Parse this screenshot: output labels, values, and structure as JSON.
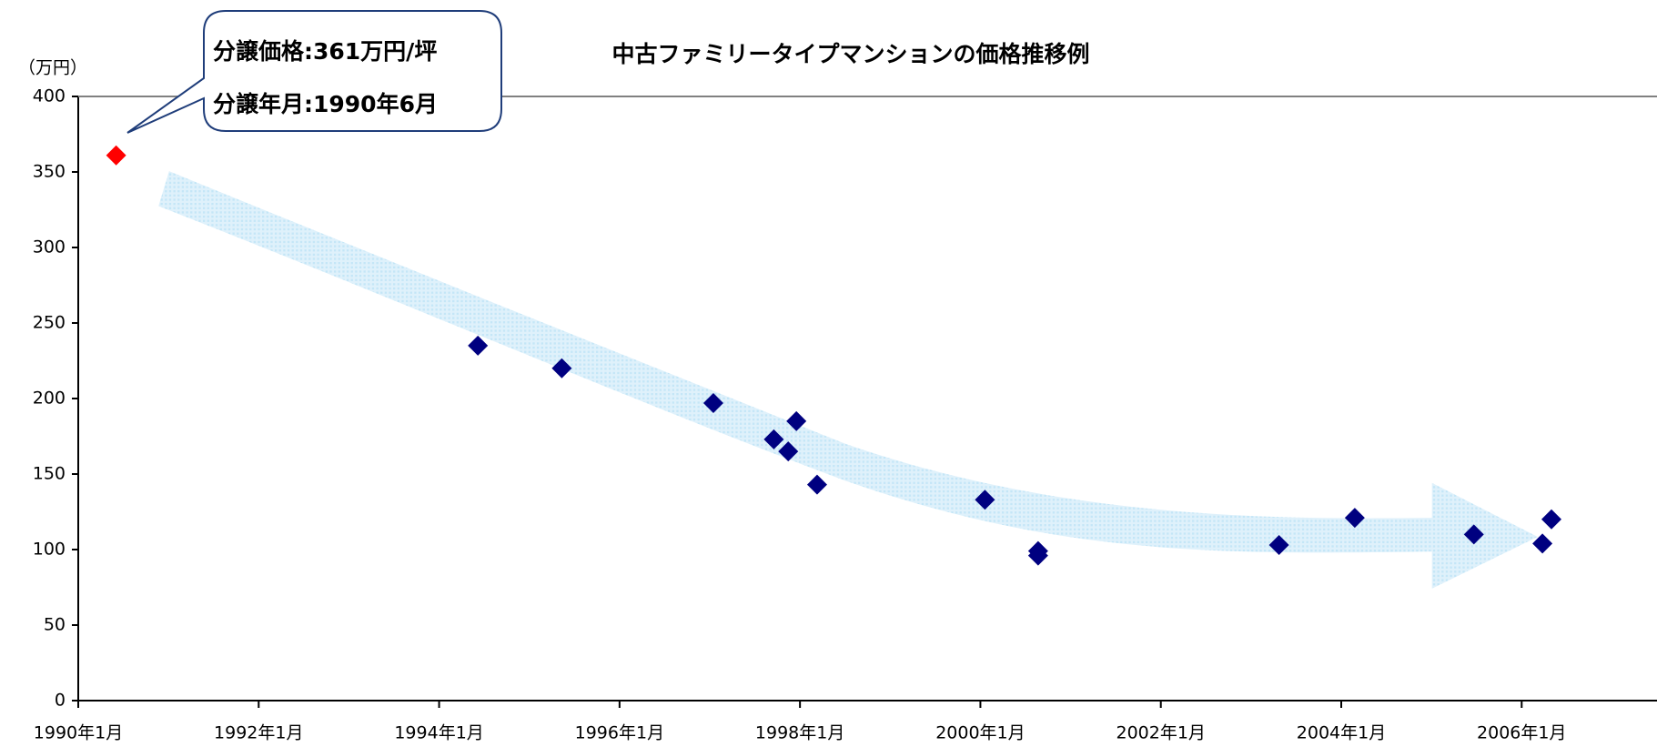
{
  "chart_data": {
    "type": "scatter",
    "title": "中古ファミリータイプマンションの価格推移例",
    "y_label": "（万円）",
    "annotations": [
      "分譲価格:361万円/坪",
      "分譲年月:1990年6月"
    ],
    "xlim": [
      1990,
      2007.5
    ],
    "ylim": [
      0,
      400
    ],
    "xticks": [
      {
        "value": 1990,
        "label": "1990年1月"
      },
      {
        "value": 1992,
        "label": "1992年1月"
      },
      {
        "value": 1994,
        "label": "1994年1月"
      },
      {
        "value": 1996,
        "label": "1996年1月"
      },
      {
        "value": 1998,
        "label": "1998年1月"
      },
      {
        "value": 2000,
        "label": "2000年1月"
      },
      {
        "value": 2002,
        "label": "2002年1月"
      },
      {
        "value": 2004,
        "label": "2004年1月"
      },
      {
        "value": 2006,
        "label": "2006年1月"
      }
    ],
    "yticks": [
      0,
      50,
      100,
      150,
      200,
      250,
      300,
      350,
      400
    ],
    "grid": false,
    "series": [
      {
        "color": "#ff0000",
        "x": [
          1990.42
        ],
        "values": [
          361
        ]
      },
      {
        "color": "#000080",
        "x": [
          1994.43,
          1995.36,
          1997.04,
          1997.71,
          1997.96,
          1997.87,
          1998.19,
          2000.05,
          2000.64,
          2000.64,
          2003.31,
          2004.15,
          2005.47,
          2006.23,
          2006.33
        ],
        "values": [
          235,
          220,
          197,
          173,
          185,
          165,
          143,
          133,
          99,
          96,
          103,
          121,
          110,
          104,
          120
        ]
      }
    ]
  }
}
